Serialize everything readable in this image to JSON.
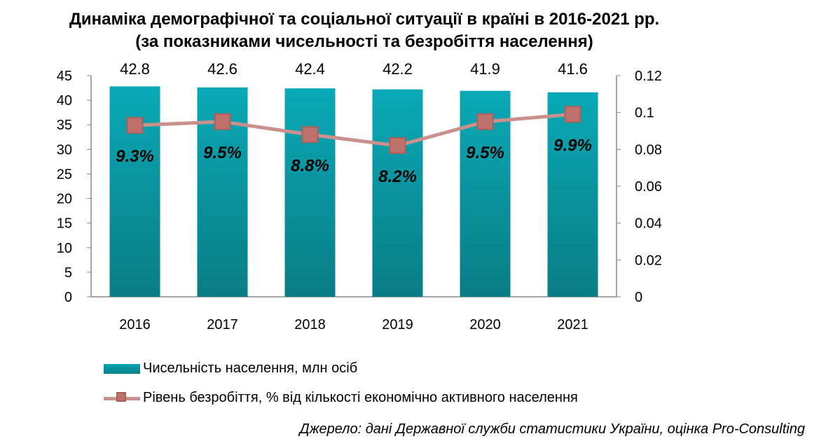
{
  "title_line1": "Динаміка демографічної та соціальної ситуації в країні в 2016-2021 рр.",
  "title_line2": "(за показниками чисельності та безробіття населення)",
  "source": "Джерело: дані Державної служби статистики України, оцінка Pro-Consulting",
  "chart_data": {
    "type": "bar",
    "categories": [
      "2016",
      "2017",
      "2018",
      "2019",
      "2020",
      "2021"
    ],
    "series": [
      {
        "name": "Чисельність населення, млн осіб",
        "type": "bar",
        "axis": "left",
        "values": [
          42.8,
          42.6,
          42.4,
          42.2,
          41.9,
          41.6
        ],
        "labels": [
          "42.8",
          "42.6",
          "42.4",
          "42.2",
          "41.9",
          "41.6"
        ],
        "color": "#0a9aa5"
      },
      {
        "name": "Рівень безробіття, % від кількості економічно активного населення",
        "type": "line",
        "axis": "right",
        "values": [
          0.093,
          0.095,
          0.088,
          0.082,
          0.095,
          0.099
        ],
        "labels": [
          "9.3%",
          "9.5%",
          "8.8%",
          "8.2%",
          "9.5%",
          "9.9%"
        ],
        "color": "#c9908c"
      }
    ],
    "y_left": {
      "min": 0,
      "max": 45,
      "ticks": [
        "0",
        "5",
        "10",
        "15",
        "20",
        "25",
        "30",
        "35",
        "40",
        "45"
      ]
    },
    "y_right": {
      "min": 0,
      "max": 0.12,
      "ticks": [
        "0",
        "0.02",
        "0.04",
        "0.06",
        "0.08",
        "0.1",
        "0.12"
      ]
    },
    "grid": false,
    "legend_position": "bottom-left"
  }
}
